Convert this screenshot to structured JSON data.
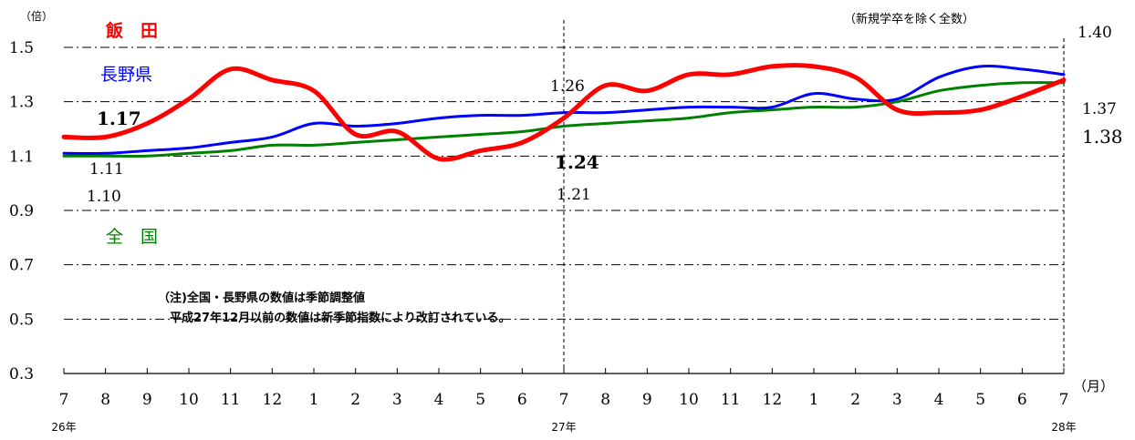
{
  "chart_data": {
    "type": "line",
    "unit_label": "（倍）",
    "note_top_right": "（新規学卒を除く全数）",
    "x_unit": "（月）",
    "categories": [
      "7",
      "8",
      "9",
      "10",
      "11",
      "12",
      "1",
      "2",
      "3",
      "4",
      "5",
      "6",
      "7",
      "8",
      "9",
      "10",
      "11",
      "12",
      "1",
      "2",
      "3",
      "4",
      "5",
      "6",
      "7"
    ],
    "year_labels": [
      {
        "index": 0,
        "text": "26年"
      },
      {
        "index": 12,
        "text": "27年"
      },
      {
        "index": 24,
        "text": "28年"
      }
    ],
    "ylim": [
      0.3,
      1.5
    ],
    "yticks": [
      "1.5",
      "1.3",
      "1.1",
      "0.9",
      "0.7",
      "0.5",
      "0.3"
    ],
    "grid": "horizontal dash-dot",
    "series": [
      {
        "name": "飯　田",
        "color": "#ff0000",
        "values": [
          1.17,
          1.17,
          1.22,
          1.31,
          1.42,
          1.38,
          1.34,
          1.18,
          1.19,
          1.09,
          1.12,
          1.15,
          1.24,
          1.36,
          1.34,
          1.4,
          1.4,
          1.43,
          1.43,
          1.39,
          1.27,
          1.26,
          1.27,
          1.32,
          1.38
        ]
      },
      {
        "name": "長野県",
        "color": "#0000ff",
        "values": [
          1.11,
          1.11,
          1.12,
          1.13,
          1.15,
          1.17,
          1.22,
          1.21,
          1.22,
          1.24,
          1.25,
          1.25,
          1.26,
          1.26,
          1.27,
          1.28,
          1.28,
          1.28,
          1.33,
          1.31,
          1.31,
          1.39,
          1.43,
          1.42,
          1.4
        ]
      },
      {
        "name": "全　国",
        "color": "#008000",
        "values": [
          1.1,
          1.1,
          1.1,
          1.11,
          1.12,
          1.14,
          1.14,
          1.15,
          1.16,
          1.17,
          1.18,
          1.19,
          1.21,
          1.22,
          1.23,
          1.24,
          1.26,
          1.27,
          1.28,
          1.28,
          1.3,
          1.34,
          1.36,
          1.37,
          1.37
        ]
      }
    ],
    "data_labels": [
      {
        "text": "1.17",
        "series": "飯　田"
      },
      {
        "text": "1.11",
        "series": "長野県"
      },
      {
        "text": "1.10",
        "series": "全　国"
      },
      {
        "text": "1.26",
        "series": "長野県"
      },
      {
        "text": "1.24",
        "series": "飯　田"
      },
      {
        "text": "1.21",
        "series": "全　国"
      },
      {
        "text": "1.40",
        "series": "長野県"
      },
      {
        "text": "1.37",
        "series": "全　国"
      },
      {
        "text": "1.38",
        "series": "飯　田"
      }
    ],
    "annotation": [
      "（注)全国・長野県の数値は季節調整値",
      "　平成27年12月以前の数値は新季節指数により改訂されている。"
    ]
  }
}
